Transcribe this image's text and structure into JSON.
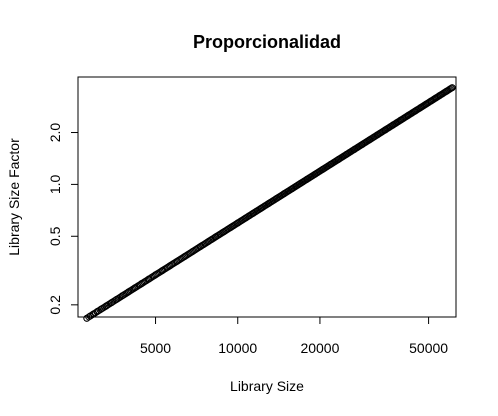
{
  "chart_data": {
    "type": "scatter",
    "title": "Proporcionalidad",
    "xlabel": "Library Size",
    "ylabel": "Library Size Factor",
    "x_scale": "log",
    "y_scale": "log",
    "xlim": [
      2600,
      63000
    ],
    "ylim": [
      0.17,
      4.2
    ],
    "x_ticks": [
      5000,
      10000,
      20000,
      50000
    ],
    "x_tick_labels": [
      "5000",
      "10000",
      "20000",
      "50000"
    ],
    "y_ticks": [
      0.2,
      0.5,
      1.0,
      2.0
    ],
    "y_tick_labels": [
      "0.2",
      "0.5",
      "1.0",
      "2.0"
    ],
    "grid": false,
    "legend": "none",
    "marker": "open-circle",
    "color": "#000000",
    "relationship": {
      "slope_loglog": 1,
      "factor_at_10000": 0.597
    },
    "points": {
      "x": [
        2800,
        2880,
        2960,
        3060,
        3160,
        3300,
        3450,
        3600,
        3780,
        3980,
        4200,
        4450,
        4720,
        5000,
        5300,
        5650,
        6000,
        6400,
        6850,
        7300,
        7800,
        8300,
        8850,
        9450,
        10000,
        10700,
        11400,
        12200,
        13000,
        13900,
        14800,
        15800,
        16900,
        18000,
        19200,
        20500,
        21900,
        23400,
        25000,
        26700,
        28500,
        30400,
        32500,
        34700,
        37000,
        39500,
        42000,
        44500,
        47000,
        49000,
        51000,
        53000,
        55000,
        58000,
        61000
      ],
      "y": [
        0.167,
        0.172,
        0.177,
        0.183,
        0.189,
        0.197,
        0.206,
        0.215,
        0.226,
        0.238,
        0.251,
        0.266,
        0.282,
        0.299,
        0.316,
        0.337,
        0.358,
        0.382,
        0.409,
        0.436,
        0.466,
        0.496,
        0.528,
        0.564,
        0.597,
        0.639,
        0.681,
        0.728,
        0.776,
        0.83,
        0.884,
        0.943,
        1.009,
        1.075,
        1.146,
        1.224,
        1.307,
        1.397,
        1.493,
        1.594,
        1.701,
        1.815,
        1.94,
        2.072,
        2.209,
        2.358,
        2.507,
        2.657,
        2.806,
        2.925,
        3.045,
        3.164,
        3.284,
        3.463,
        3.642
      ]
    }
  }
}
